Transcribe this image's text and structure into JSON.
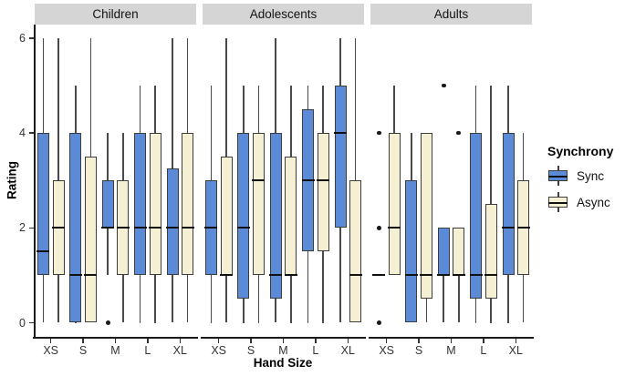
{
  "chart_data": {
    "type": "boxplot",
    "xlabel": "Hand Size",
    "ylabel": "Rating",
    "ylim": [
      0,
      6
    ],
    "yticks": [
      0,
      2,
      4,
      6
    ],
    "categories": [
      "XS",
      "S",
      "M",
      "L",
      "XL"
    ],
    "legend": {
      "title": "Synchrony",
      "entries": [
        {
          "label": "Sync",
          "color": "#5b8ad6"
        },
        {
          "label": "Async",
          "color": "#f5f0d3"
        }
      ]
    },
    "facets": [
      {
        "label": "Children",
        "groups": [
          {
            "category": "XS",
            "sync": {
              "whisker_low": 0,
              "q1": 1,
              "median": 1.5,
              "q3": 4,
              "whisker_high": 6,
              "outliers": []
            },
            "async": {
              "whisker_low": 0,
              "q1": 1,
              "median": 2,
              "q3": 3,
              "whisker_high": 6,
              "outliers": []
            }
          },
          {
            "category": "S",
            "sync": {
              "whisker_low": 0,
              "q1": 0,
              "median": 1,
              "q3": 4,
              "whisker_high": 5,
              "outliers": []
            },
            "async": {
              "whisker_low": 0,
              "q1": 0,
              "median": 1,
              "q3": 3.5,
              "whisker_high": 6,
              "outliers": []
            }
          },
          {
            "category": "M",
            "sync": {
              "whisker_low": 1,
              "q1": 2,
              "median": 2,
              "q3": 3,
              "whisker_high": 4,
              "outliers": [
                0
              ]
            },
            "async": {
              "whisker_low": 0,
              "q1": 1,
              "median": 2,
              "q3": 3,
              "whisker_high": 4,
              "outliers": []
            }
          },
          {
            "category": "L",
            "sync": {
              "whisker_low": 0,
              "q1": 1,
              "median": 2,
              "q3": 4,
              "whisker_high": 5,
              "outliers": []
            },
            "async": {
              "whisker_low": 0,
              "q1": 1,
              "median": 2,
              "q3": 4,
              "whisker_high": 5,
              "outliers": []
            }
          },
          {
            "category": "XL",
            "sync": {
              "whisker_low": 0,
              "q1": 1,
              "median": 2,
              "q3": 3.25,
              "whisker_high": 6,
              "outliers": []
            },
            "async": {
              "whisker_low": 0,
              "q1": 1,
              "median": 2,
              "q3": 4,
              "whisker_high": 6,
              "outliers": []
            }
          }
        ]
      },
      {
        "label": "Adolescents",
        "groups": [
          {
            "category": "XS",
            "sync": {
              "whisker_low": 0,
              "q1": 1,
              "median": 2,
              "q3": 3,
              "whisker_high": 5,
              "outliers": []
            },
            "async": {
              "whisker_low": 0,
              "q1": 1,
              "median": 1,
              "q3": 3.5,
              "whisker_high": 6,
              "outliers": []
            }
          },
          {
            "category": "S",
            "sync": {
              "whisker_low": 0,
              "q1": 0.5,
              "median": 2,
              "q3": 4,
              "whisker_high": 5,
              "outliers": []
            },
            "async": {
              "whisker_low": 0,
              "q1": 1,
              "median": 3,
              "q3": 4,
              "whisker_high": 5,
              "outliers": []
            }
          },
          {
            "category": "M",
            "sync": {
              "whisker_low": 0,
              "q1": 0.5,
              "median": 1,
              "q3": 4,
              "whisker_high": 6,
              "outliers": []
            },
            "async": {
              "whisker_low": 0,
              "q1": 1,
              "median": 1,
              "q3": 3.5,
              "whisker_high": 5,
              "outliers": []
            }
          },
          {
            "category": "L",
            "sync": {
              "whisker_low": 0,
              "q1": 1.5,
              "median": 3,
              "q3": 4.5,
              "whisker_high": 5,
              "outliers": []
            },
            "async": {
              "whisker_low": 0,
              "q1": 1.5,
              "median": 3,
              "q3": 4,
              "whisker_high": 5,
              "outliers": []
            }
          },
          {
            "category": "XL",
            "sync": {
              "whisker_low": 0,
              "q1": 2,
              "median": 4,
              "q3": 5,
              "whisker_high": 6,
              "outliers": []
            },
            "async": {
              "whisker_low": 0,
              "q1": 0,
              "median": 1,
              "q3": 3,
              "whisker_high": 6,
              "outliers": []
            }
          }
        ]
      },
      {
        "label": "Adults",
        "groups": [
          {
            "category": "XS",
            "sync": {
              "whisker_low": 1,
              "q1": 1,
              "median": 1,
              "q3": 1,
              "whisker_high": 1,
              "outliers": [
                0,
                2,
                4
              ]
            },
            "async": {
              "whisker_low": 1,
              "q1": 1,
              "median": 2,
              "q3": 4,
              "whisker_high": 5,
              "outliers": []
            }
          },
          {
            "category": "S",
            "sync": {
              "whisker_low": 0,
              "q1": 0,
              "median": 1,
              "q3": 3,
              "whisker_high": 4,
              "outliers": []
            },
            "async": {
              "whisker_low": 0,
              "q1": 0.5,
              "median": 1,
              "q3": 4,
              "whisker_high": 4,
              "outliers": []
            }
          },
          {
            "category": "M",
            "sync": {
              "whisker_low": 0,
              "q1": 1,
              "median": 1,
              "q3": 2,
              "whisker_high": 2,
              "outliers": [
                5
              ]
            },
            "async": {
              "whisker_low": 0,
              "q1": 1,
              "median": 1,
              "q3": 2,
              "whisker_high": 2,
              "outliers": [
                4
              ]
            }
          },
          {
            "category": "L",
            "sync": {
              "whisker_low": 0,
              "q1": 0.5,
              "median": 1,
              "q3": 4,
              "whisker_high": 5,
              "outliers": []
            },
            "async": {
              "whisker_low": 0,
              "q1": 0.5,
              "median": 1,
              "q3": 2.5,
              "whisker_high": 5,
              "outliers": []
            }
          },
          {
            "category": "XL",
            "sync": {
              "whisker_low": 0,
              "q1": 1,
              "median": 2,
              "q3": 4,
              "whisker_high": 5,
              "outliers": []
            },
            "async": {
              "whisker_low": 0,
              "q1": 1,
              "median": 2,
              "q3": 3,
              "whisker_high": 4,
              "outliers": []
            }
          }
        ]
      }
    ]
  },
  "colors": {
    "sync_fill": "#5b8ad6",
    "async_fill": "#f5f0d3",
    "strip_bg": "#d5d5d5",
    "box_border": "#3d3d3d",
    "whisker": "#4a4a4a",
    "median": "#111111",
    "outlier": "#1a1a1a",
    "axis": "#1a1a1a"
  }
}
